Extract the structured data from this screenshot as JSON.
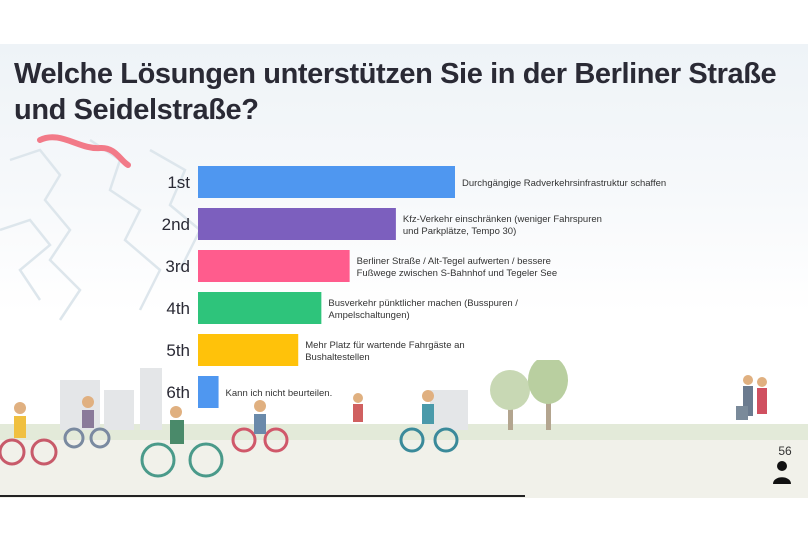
{
  "slide": {
    "title": "Welche Lösungen unterstützen Sie in der Berliner Straße und Seidelstraße?",
    "page_number": "56"
  },
  "icons": [
    "person-icon"
  ],
  "chart_data": {
    "type": "bar",
    "orientation": "horizontal",
    "categories": [
      "1st",
      "2nd",
      "3rd",
      "4th",
      "5th",
      "6th"
    ],
    "labels": [
      "Durchgängige Radverkehrsinfrastruktur schaffen",
      "Kfz-Verkehr einschränken (weniger Fahrspuren und Parkplätze, Tempo 30)",
      "Berliner Straße / Alt-Tegel aufwerten / bessere Fußwege zwischen S-Bahnhof und Tegeler See",
      "Busverkehr pünktlicher machen (Busspuren / Ampelschaltungen)",
      "Mehr Platz für wartende Fahrgäste an Bushaltestellen",
      "Kann ich nicht beurteilen."
    ],
    "label_lines": [
      [
        "Durchgängige Radverkehrsinfrastruktur schaffen"
      ],
      [
        "Kfz-Verkehr einschränken (weniger Fahrspuren",
        "und Parkplätze, Tempo 30)"
      ],
      [
        "Berliner Straße / Alt-Tegel aufwerten / bessere",
        "Fußwege zwischen S-Bahnhof und Tegeler See"
      ],
      [
        "Busverkehr pünktlicher machen (Busspuren /",
        "Ampelschaltungen)"
      ],
      [
        "Mehr Platz für wartende Fahrgäste an",
        "Bushaltestellen"
      ],
      [
        "Kann ich nicht beurteilen."
      ]
    ],
    "values": [
      100,
      77,
      59,
      48,
      39,
      8
    ],
    "colors": [
      "#4f97f0",
      "#7c5fbe",
      "#ff5c8d",
      "#2ec47b",
      "#ffc20a",
      "#4f97f0"
    ],
    "xlim": [
      0,
      100
    ],
    "grid": false,
    "legend": "none"
  }
}
